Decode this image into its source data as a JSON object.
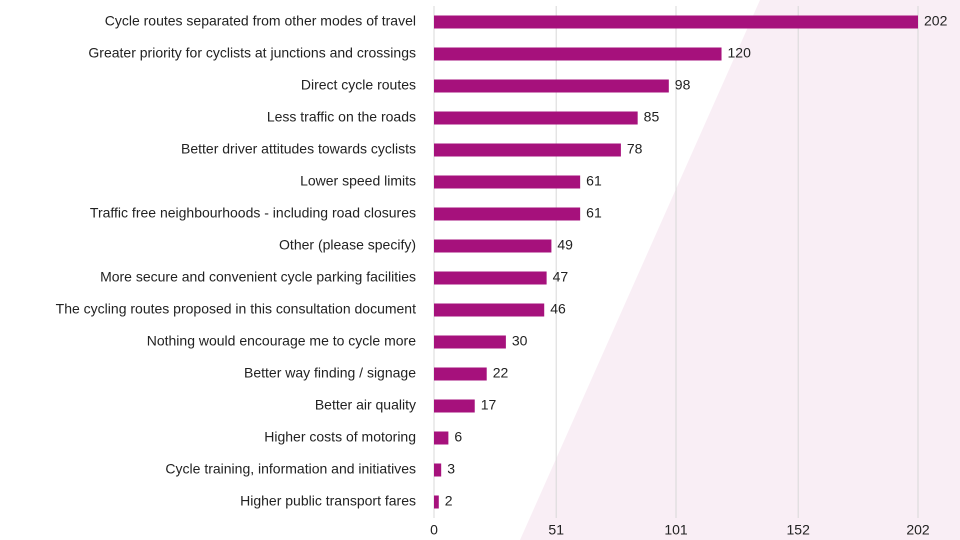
{
  "chart_data": {
    "type": "bar",
    "orientation": "horizontal",
    "categories": [
      "Cycle routes separated from other modes of travel",
      "Greater priority for cyclists at junctions and crossings",
      "Direct cycle routes",
      "Less traffic on the roads",
      "Better driver attitudes towards cyclists",
      "Lower speed limits",
      "Traffic free neighbourhoods - including road closures",
      "Other (please specify)",
      "More secure and convenient cycle parking facilities",
      "The cycling routes proposed in this consultation document",
      "Nothing would encourage me to cycle more",
      "Better way finding / signage",
      "Better air quality",
      "Higher costs of motoring",
      "Cycle training, information and initiatives",
      "Higher public transport fares"
    ],
    "values": [
      202,
      120,
      98,
      85,
      78,
      61,
      61,
      49,
      47,
      46,
      30,
      22,
      17,
      6,
      3,
      2
    ],
    "color": "#a6117c",
    "xlim": [
      0,
      202
    ],
    "xticks": [
      0,
      51,
      101,
      152,
      202
    ],
    "grid": true
  }
}
